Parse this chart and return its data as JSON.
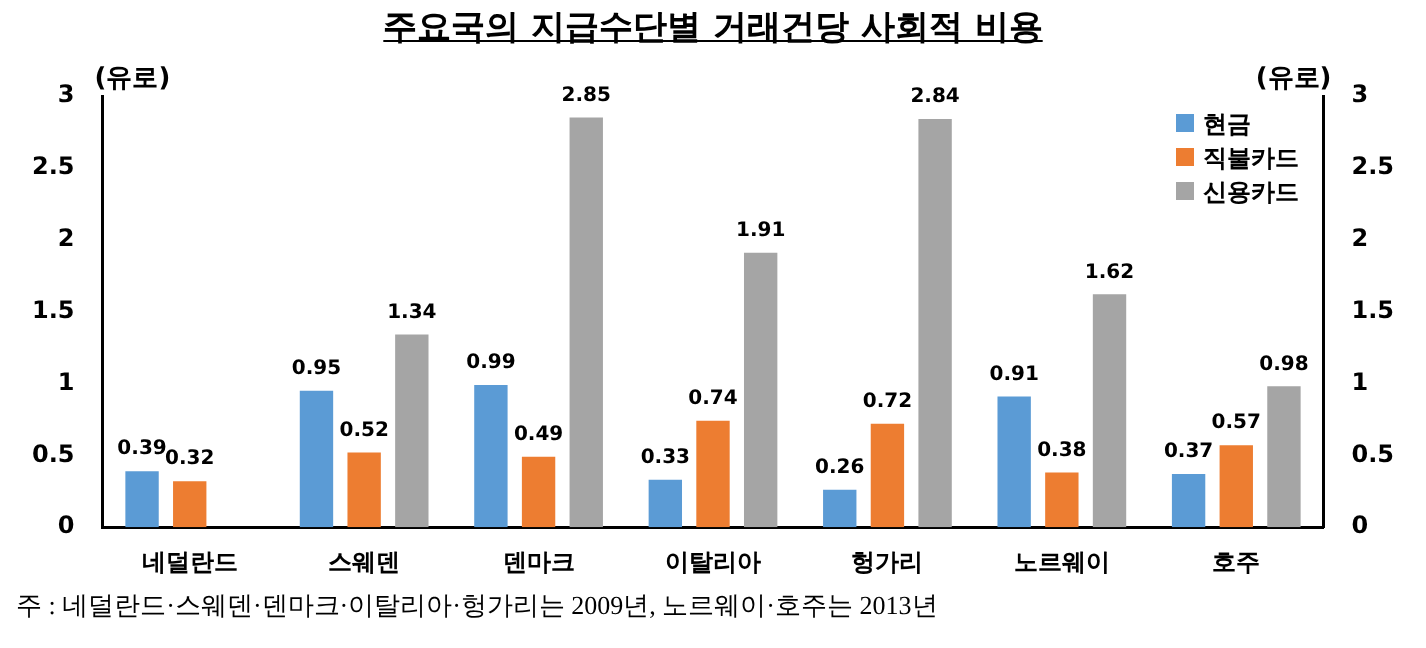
{
  "chart_data": {
    "type": "bar",
    "title": "주요국의 지급수단별 거래건당 사회적 비용",
    "ylabel": "(유로)",
    "y2label": "(유로)",
    "categories": [
      "네덜란드",
      "스웨덴",
      "덴마크",
      "이탈리아",
      "헝가리",
      "노르웨이",
      "호주"
    ],
    "series": [
      {
        "name": "현금",
        "color": "#5b9bd5",
        "values": [
          0.39,
          0.95,
          0.99,
          0.33,
          0.26,
          0.91,
          0.37
        ]
      },
      {
        "name": "직불카드",
        "color": "#ed7d31",
        "values": [
          0.32,
          0.52,
          0.49,
          0.74,
          0.72,
          0.38,
          0.57
        ]
      },
      {
        "name": "신용카드",
        "color": "#a5a5a5",
        "values": [
          null,
          1.34,
          2.85,
          1.91,
          2.84,
          1.62,
          0.98
        ]
      }
    ],
    "ylim": [
      0,
      3
    ],
    "yticks": [
      0,
      0.5,
      1,
      1.5,
      2,
      2.5,
      3
    ],
    "y2lim": [
      0,
      3
    ],
    "y2ticks": [
      0,
      0.5,
      1,
      1.5,
      2,
      2.5,
      3
    ],
    "grid": false,
    "legend": "top right",
    "data_labels": true,
    "annotations": [
      "주 : 네덜란드·스웨덴·덴마크·이탈리아·헝가리는 2009년, 노르웨이·호주는 2013년"
    ]
  }
}
